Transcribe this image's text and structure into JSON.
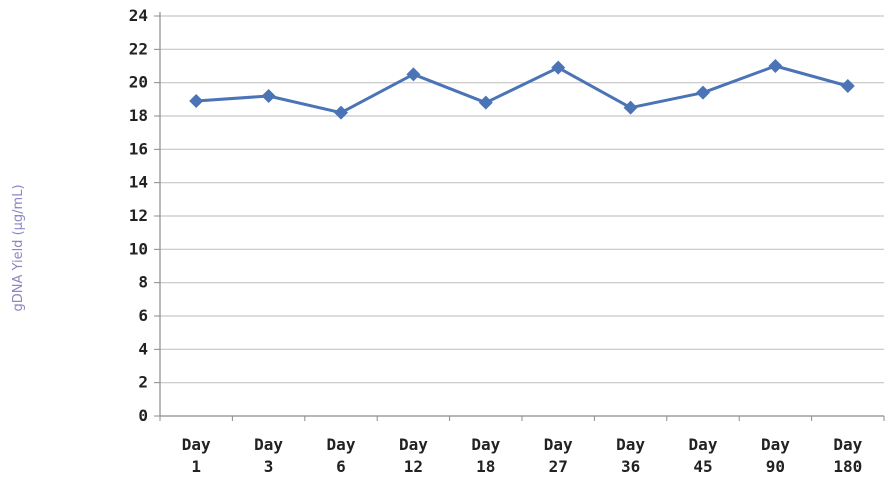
{
  "chart_data": {
    "type": "line",
    "title": "",
    "xlabel": "",
    "ylabel": "gDNA Yield (µg/mL)",
    "categories": [
      [
        "Day",
        "1"
      ],
      [
        "Day",
        "3"
      ],
      [
        "Day",
        "6"
      ],
      [
        "Day",
        "12"
      ],
      [
        "Day",
        "18"
      ],
      [
        "Day",
        "27"
      ],
      [
        "Day",
        "36"
      ],
      [
        "Day",
        "45"
      ],
      [
        "Day",
        "90"
      ],
      [
        "Day",
        "180"
      ]
    ],
    "series": [
      {
        "values": [
          18.9,
          19.2,
          18.2,
          20.5,
          18.8,
          20.9,
          18.5,
          19.4,
          21.0,
          19.8
        ]
      }
    ],
    "ylim": [
      0,
      24
    ],
    "yticks": [
      0,
      2,
      4,
      6,
      8,
      10,
      12,
      14,
      16,
      18,
      20,
      22,
      24
    ],
    "grid": true,
    "legend": "none",
    "marker": "diamond",
    "colors": {
      "series": "#4a74b5",
      "grid": "#c6c6c6",
      "axis": "#8c8c8c",
      "ylabel": "#8a87c2"
    }
  }
}
